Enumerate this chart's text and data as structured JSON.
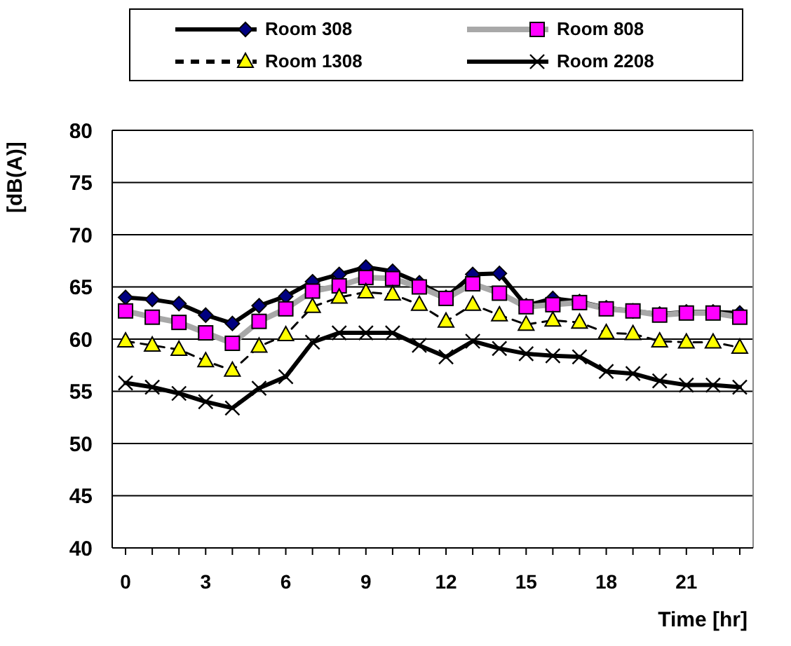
{
  "chart_data": {
    "type": "line",
    "xlabel": "Time [hr]",
    "ylabel": "[dB(A)]",
    "x": [
      0,
      1,
      2,
      3,
      4,
      5,
      6,
      7,
      8,
      9,
      10,
      11,
      12,
      13,
      14,
      15,
      16,
      17,
      18,
      19,
      20,
      21,
      22,
      23
    ],
    "xlim": [
      -0.5,
      23.5
    ],
    "xticks": [
      0,
      {
        "value": 1,
        "label": null
      },
      {
        "value": 2,
        "label": null
      },
      3,
      {
        "value": 4,
        "label": null
      },
      {
        "value": 5,
        "label": null
      },
      6,
      {
        "value": 7,
        "label": null
      },
      {
        "value": 8,
        "label": null
      },
      9,
      {
        "value": 10,
        "label": null
      },
      {
        "value": 11,
        "label": null
      },
      12,
      {
        "value": 13,
        "label": null
      },
      {
        "value": 14,
        "label": null
      },
      15,
      {
        "value": 16,
        "label": null
      },
      {
        "value": 17,
        "label": null
      },
      18,
      {
        "value": 19,
        "label": null
      },
      {
        "value": 20,
        "label": null
      },
      21,
      {
        "value": 22,
        "label": null
      },
      {
        "value": 23,
        "label": null
      }
    ],
    "ylim": [
      40,
      80
    ],
    "yticks": [
      40,
      45,
      50,
      55,
      60,
      65,
      70,
      75,
      80
    ],
    "grid": "y",
    "legend": "top",
    "series": [
      {
        "name": "Room 308",
        "color": "#000080",
        "marker": "diamond",
        "line_style": "solid",
        "values": [
          64.0,
          63.8,
          63.4,
          62.3,
          61.5,
          63.2,
          64.1,
          65.5,
          66.2,
          66.9,
          66.5,
          65.4,
          64.0,
          66.2,
          66.3,
          63.2,
          63.9,
          63.6,
          63.0,
          62.7,
          62.4,
          62.6,
          62.6,
          62.5
        ]
      },
      {
        "name": "Room 808",
        "color": "#ff00ff",
        "marker": "square",
        "line_style": "solid",
        "values": [
          62.7,
          62.1,
          61.6,
          60.6,
          59.6,
          61.7,
          62.9,
          64.6,
          65.1,
          65.9,
          65.8,
          65.0,
          63.9,
          65.3,
          64.4,
          63.1,
          63.3,
          63.5,
          62.9,
          62.7,
          62.3,
          62.5,
          62.5,
          62.1
        ]
      },
      {
        "name": "Room 1308",
        "color": "#ffff00",
        "marker": "triangle",
        "line_style": "dashed",
        "values": [
          59.8,
          59.4,
          59.0,
          57.9,
          57.0,
          59.3,
          60.4,
          63.1,
          64.0,
          64.5,
          64.3,
          63.3,
          61.7,
          63.3,
          62.3,
          61.4,
          61.8,
          61.6,
          60.6,
          60.5,
          59.8,
          59.7,
          59.7,
          59.2
        ]
      },
      {
        "name": "Room 2208",
        "color": "#000000",
        "marker": "cross",
        "line_style": "solid",
        "values": [
          55.8,
          55.4,
          54.8,
          54.0,
          53.4,
          55.3,
          56.4,
          59.7,
          60.6,
          60.6,
          60.6,
          59.4,
          58.3,
          59.8,
          59.1,
          58.6,
          58.4,
          58.3,
          56.9,
          56.7,
          56.0,
          55.6,
          55.6,
          55.4
        ]
      }
    ]
  }
}
